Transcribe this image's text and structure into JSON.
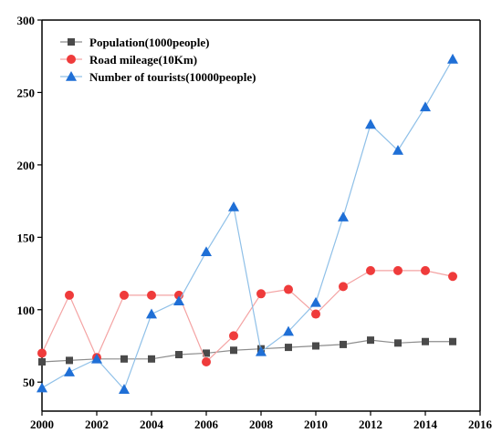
{
  "chart_data": {
    "type": "line",
    "title": "",
    "xlabel": "",
    "ylabel": "",
    "xlim": [
      2000,
      2016
    ],
    "ylim": [
      30,
      300
    ],
    "x_ticks": [
      2000,
      2002,
      2004,
      2006,
      2008,
      2010,
      2012,
      2014,
      2016
    ],
    "y_ticks": [
      50,
      100,
      150,
      200,
      250,
      300
    ],
    "grid": false,
    "legend_position": "top-left",
    "x": [
      2000,
      2001,
      2002,
      2003,
      2004,
      2005,
      2006,
      2007,
      2008,
      2009,
      2010,
      2011,
      2012,
      2013,
      2014,
      2015
    ],
    "series": [
      {
        "name": "Population(1000people)",
        "marker": "square",
        "color": "#4a4a4a",
        "line_color": "#8c8c8c",
        "values": [
          64,
          65,
          66,
          66,
          66,
          69,
          70,
          72,
          73,
          74,
          75,
          76,
          79,
          77,
          78,
          78
        ]
      },
      {
        "name": "Road mileage(10Km)",
        "marker": "circle",
        "color": "#ef3b3b",
        "line_color": "#f4a3a3",
        "values": [
          70,
          110,
          67,
          110,
          110,
          110,
          64,
          82,
          111,
          114,
          97,
          116,
          127,
          127,
          127,
          123
        ]
      },
      {
        "name": "Number of tourists(10000people)",
        "marker": "triangle",
        "color": "#1f6fd6",
        "line_color": "#8fc0e8",
        "values": [
          46,
          57,
          66,
          45,
          97,
          106,
          140,
          171,
          71,
          85,
          105,
          164,
          228,
          210,
          240,
          273
        ]
      }
    ]
  }
}
